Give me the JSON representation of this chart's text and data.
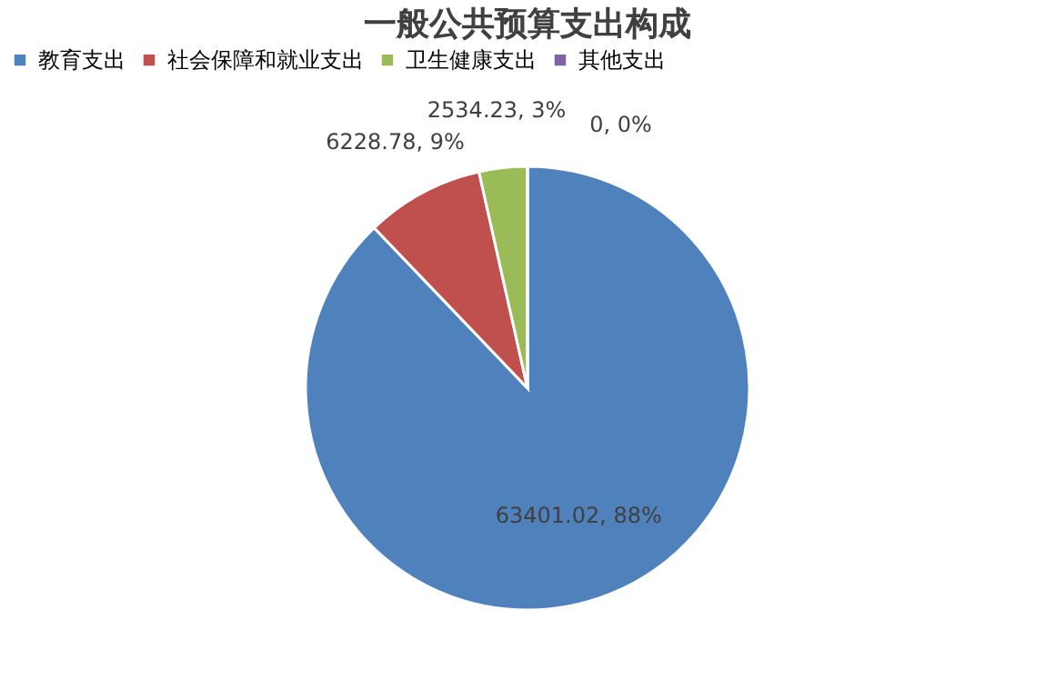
{
  "chart_data": {
    "type": "pie",
    "title": "一般公共预算支出构成",
    "categories": [
      "教育支出",
      "社会保障和就业支出",
      "卫生健康支出",
      "其他支出"
    ],
    "values": [
      63401.02,
      6228.78,
      2534.23,
      0
    ],
    "colors": [
      "#4f81bd",
      "#c0504d",
      "#9bbb59",
      "#8064a2"
    ],
    "value_labels": [
      "63401.02, 88%",
      "6228.78, 9%",
      "2534.23, 3%",
      "0, 0%"
    ],
    "legend": "top"
  }
}
